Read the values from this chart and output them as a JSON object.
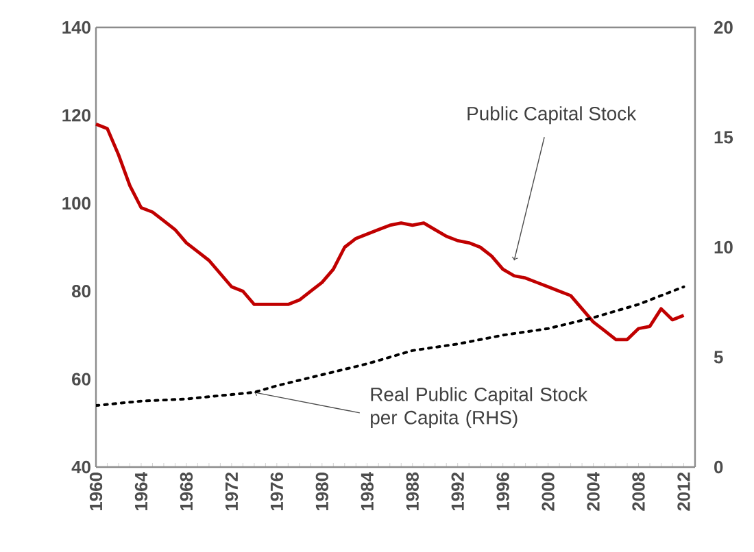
{
  "chart_data": {
    "type": "line",
    "x": [
      1960,
      1961,
      1962,
      1963,
      1964,
      1965,
      1966,
      1967,
      1968,
      1969,
      1970,
      1971,
      1972,
      1973,
      1974,
      1975,
      1976,
      1977,
      1978,
      1979,
      1980,
      1981,
      1982,
      1983,
      1984,
      1985,
      1986,
      1987,
      1988,
      1989,
      1990,
      1991,
      1992,
      1993,
      1994,
      1995,
      1996,
      1997,
      1998,
      1999,
      2000,
      2001,
      2002,
      2003,
      2004,
      2005,
      2006,
      2007,
      2008,
      2009,
      2010,
      2011,
      2012
    ],
    "series": [
      {
        "color": "#c00000",
        "line_style": "solid",
        "values": [
          118,
          117,
          111,
          104,
          99,
          98,
          96,
          94,
          91,
          89,
          87,
          84,
          81,
          80,
          77,
          77,
          77,
          77,
          78,
          80,
          82,
          85,
          90,
          92,
          93,
          94,
          95,
          95.5,
          95,
          95.5,
          94,
          92.5,
          91.5,
          91,
          90,
          88,
          85,
          83.5,
          83,
          82,
          81,
          80,
          79,
          76,
          73,
          71,
          69,
          69,
          71.5,
          72,
          76,
          73.5,
          74.5
        ]
      },
      {
        "axis": "y2",
        "color": "#000000",
        "line_style": "dotted",
        "x": [
          1960,
          1964,
          1968,
          1972,
          1974,
          1976,
          1980,
          1984,
          1988,
          1992,
          1996,
          2000,
          2004,
          2008,
          2012
        ],
        "values": [
          2.8,
          3.0,
          3.1,
          3.3,
          3.4,
          3.7,
          4.2,
          4.7,
          5.3,
          5.6,
          6.0,
          6.3,
          6.8,
          7.4,
          8.2
        ]
      }
    ],
    "xlim": [
      1960,
      2013
    ],
    "xticks": [
      1960,
      1964,
      1968,
      1972,
      1976,
      1980,
      1984,
      1988,
      1992,
      1996,
      2000,
      2004,
      2008,
      2012
    ],
    "ylim": [
      40,
      140
    ],
    "yticks": [
      40,
      60,
      80,
      100,
      120,
      140
    ],
    "y2lim": [
      0,
      20
    ],
    "y2ticks": [
      0,
      5,
      10,
      15,
      20
    ],
    "annotations": [
      {
        "text": "Public Capital Stock",
        "x": 1997,
        "y": 87
      },
      {
        "text": "Real Public Capital Stock per Capita (RHS)",
        "x": 1974,
        "y": 57
      }
    ],
    "grid": false
  }
}
